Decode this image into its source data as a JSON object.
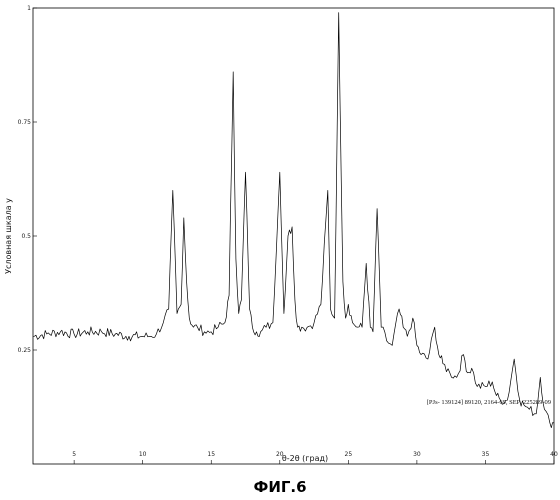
{
  "chart_data": {
    "type": "line",
    "title": "",
    "xlabel": "θ-2θ (град)",
    "ylabel": "Условная шкала у",
    "xlim": [
      2,
      40
    ],
    "ylim": [
      0,
      1
    ],
    "x_ticks": [
      5,
      10,
      15,
      20,
      25,
      30,
      35,
      40
    ],
    "y_ticks": [
      0.25,
      0.5,
      0.75,
      1
    ],
    "y_tick_labels": [
      "0.25",
      "0.5",
      "0.75",
      "1"
    ],
    "grid": false,
    "annotation": "[PJs- 139124] 89120, 2164-69, SEP. 225289-09",
    "series": [
      {
        "x": [
          2.0,
          3.0,
          4.0,
          5.0,
          6.0,
          7.0,
          8.0,
          9.0,
          10.0,
          10.5,
          11.0,
          11.5,
          11.9,
          12.2,
          12.5,
          12.8,
          13.0,
          13.2,
          13.4,
          13.7,
          14.0,
          14.5,
          15.0,
          15.5,
          16.0,
          16.3,
          16.6,
          16.8,
          17.0,
          17.2,
          17.5,
          17.8,
          18.0,
          18.3,
          18.6,
          19.0,
          19.5,
          20.0,
          20.3,
          20.6,
          20.9,
          21.1,
          21.3,
          21.6,
          22.0,
          22.5,
          23.0,
          23.5,
          23.7,
          24.0,
          24.3,
          24.6,
          24.8,
          25.0,
          25.3,
          25.7,
          26.0,
          26.3,
          26.6,
          26.8,
          27.1,
          27.4,
          27.8,
          28.2,
          28.7,
          29.0,
          29.3,
          29.7,
          30.0,
          30.3,
          30.8,
          31.3,
          31.6,
          31.9,
          32.4,
          32.9,
          33.4,
          33.7,
          34.0,
          34.4,
          35.0,
          35.5,
          35.8,
          36.1,
          36.6,
          37.1,
          37.5,
          37.8,
          38.2,
          38.7,
          39.0,
          39.3,
          39.7,
          40.0
        ],
        "y": [
          0.28,
          0.285,
          0.29,
          0.285,
          0.29,
          0.29,
          0.285,
          0.28,
          0.28,
          0.28,
          0.285,
          0.31,
          0.34,
          0.6,
          0.33,
          0.35,
          0.54,
          0.4,
          0.32,
          0.3,
          0.3,
          0.29,
          0.29,
          0.3,
          0.31,
          0.37,
          0.86,
          0.45,
          0.33,
          0.36,
          0.64,
          0.34,
          0.3,
          0.29,
          0.29,
          0.3,
          0.31,
          0.64,
          0.33,
          0.5,
          0.52,
          0.36,
          0.3,
          0.3,
          0.3,
          0.31,
          0.35,
          0.6,
          0.34,
          0.32,
          0.99,
          0.4,
          0.32,
          0.35,
          0.31,
          0.3,
          0.3,
          0.44,
          0.3,
          0.29,
          0.56,
          0.3,
          0.27,
          0.26,
          0.34,
          0.3,
          0.28,
          0.32,
          0.26,
          0.24,
          0.23,
          0.3,
          0.24,
          0.22,
          0.2,
          0.19,
          0.24,
          0.2,
          0.21,
          0.17,
          0.17,
          0.18,
          0.15,
          0.14,
          0.14,
          0.23,
          0.14,
          0.13,
          0.12,
          0.11,
          0.19,
          0.12,
          0.09,
          0.09
        ]
      }
    ]
  },
  "caption": "ФИГ.6"
}
